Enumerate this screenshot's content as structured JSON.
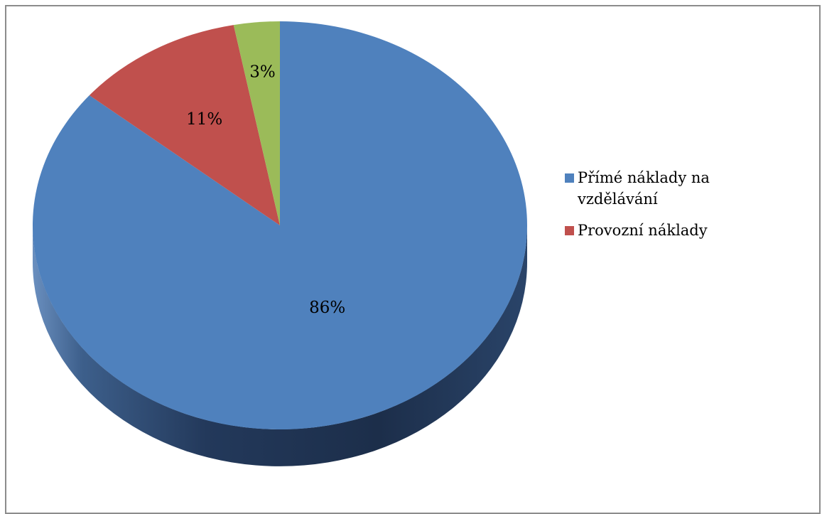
{
  "chart_data": {
    "type": "pie",
    "style": "3d",
    "categories": [
      "Přímé náklady na vzdělávání",
      "Provozní náklady",
      ""
    ],
    "values": [
      86,
      11,
      3
    ],
    "data_labels": [
      "86%",
      "11%",
      "3%"
    ],
    "colors": [
      "#4f81bd",
      "#c0504d",
      "#9bbb59"
    ],
    "side_colors": [
      "#1f3250",
      "#7e2f2d",
      "#5d7a2f"
    ],
    "start_angle_deg": 0,
    "direction": "clockwise",
    "legend_position": "right",
    "legend": [
      {
        "label": "Přímé náklady na vzdělávání",
        "color": "#4f81bd"
      },
      {
        "label": "Provozní náklady",
        "color": "#c0504d"
      }
    ],
    "title": "",
    "xlabel": "",
    "ylabel": ""
  }
}
